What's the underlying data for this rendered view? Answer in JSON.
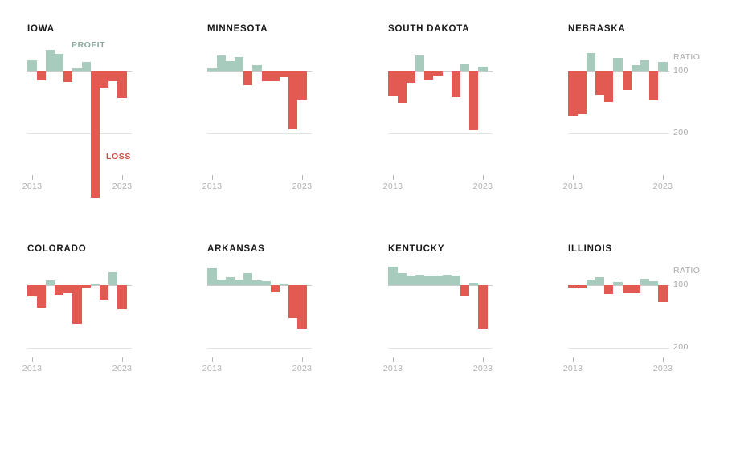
{
  "labels": {
    "profit": "PROFIT",
    "loss": "LOSS",
    "ratio": "RATIO",
    "ratio_top": "100",
    "ratio_bottom": "200",
    "year_start": "2013",
    "year_end": "2023"
  },
  "colors": {
    "profit_bar": "#a7cbbd",
    "loss_bar": "#e25a52",
    "profit_label_text": "#8cab9d",
    "loss_label_text": "#cf4f48",
    "axis_text": "#aaaaaa",
    "title_text": "#1a1a1a",
    "baseline": "#cccccc",
    "gridline": "#e4e4e4"
  },
  "chart_data": [
    {
      "type": "bar",
      "title": "IOWA",
      "ylabel": "RATIO",
      "x": [
        2013,
        2014,
        2015,
        2016,
        2017,
        2018,
        2019,
        2020,
        2021,
        2022,
        2023
      ],
      "values": [
        82,
        114,
        65,
        71,
        117,
        95,
        84,
        304,
        126,
        116,
        143
      ],
      "baseline": 100,
      "gridline": 200,
      "inverted_y": true,
      "legend": {
        "below_100": "PROFIT",
        "above_100": "LOSS"
      }
    },
    {
      "type": "bar",
      "title": "MINNESOTA",
      "ylabel": "RATIO",
      "x": [
        2013,
        2014,
        2015,
        2016,
        2017,
        2018,
        2019,
        2020,
        2021,
        2022,
        2023
      ],
      "values": [
        95,
        74,
        83,
        77,
        122,
        90,
        116,
        116,
        109,
        193,
        145
      ],
      "baseline": 100,
      "gridline": 200,
      "inverted_y": true,
      "legend": {
        "below_100": "PROFIT",
        "above_100": "LOSS"
      }
    },
    {
      "type": "bar",
      "title": "SOUTH DAKOTA",
      "ylabel": "RATIO",
      "x": [
        2013,
        2014,
        2015,
        2016,
        2017,
        2018,
        2019,
        2020,
        2021,
        2022,
        2023
      ],
      "values": [
        140,
        151,
        118,
        74,
        113,
        106,
        100,
        142,
        88,
        195,
        92
      ],
      "baseline": 100,
      "gridline": 200,
      "inverted_y": true,
      "legend": {
        "below_100": "PROFIT",
        "above_100": "LOSS"
      }
    },
    {
      "type": "bar",
      "title": "NEBRASKA",
      "ylabel": "RATIO",
      "x": [
        2013,
        2014,
        2015,
        2016,
        2017,
        2018,
        2019,
        2020,
        2021,
        2022,
        2023
      ],
      "values": [
        171,
        169,
        70,
        138,
        149,
        78,
        130,
        90,
        82,
        147,
        84
      ],
      "baseline": 100,
      "gridline": 200,
      "inverted_y": true,
      "legend": {
        "below_100": "PROFIT",
        "above_100": "LOSS"
      }
    },
    {
      "type": "bar",
      "title": "COLORADO",
      "ylabel": "RATIO",
      "x": [
        2013,
        2014,
        2015,
        2016,
        2017,
        2018,
        2019,
        2020,
        2021,
        2022,
        2023
      ],
      "values": [
        118,
        136,
        92,
        116,
        113,
        162,
        104,
        97,
        123,
        79,
        139
      ],
      "baseline": 100,
      "gridline": 200,
      "inverted_y": true,
      "legend": {
        "below_100": "PROFIT",
        "above_100": "LOSS"
      }
    },
    {
      "type": "bar",
      "title": "ARKANSAS",
      "ylabel": "RATIO",
      "x": [
        2013,
        2014,
        2015,
        2016,
        2017,
        2018,
        2019,
        2020,
        2021,
        2022,
        2023
      ],
      "values": [
        73,
        91,
        87,
        91,
        81,
        92,
        94,
        112,
        97,
        153,
        170
      ],
      "baseline": 100,
      "gridline": 200,
      "inverted_y": true,
      "legend": {
        "below_100": "PROFIT",
        "above_100": "LOSS"
      }
    },
    {
      "type": "bar",
      "title": "KENTUCKY",
      "ylabel": "RATIO",
      "x": [
        2013,
        2014,
        2015,
        2016,
        2017,
        2018,
        2019,
        2020,
        2021,
        2022,
        2023
      ],
      "values": [
        70,
        80,
        84,
        83,
        85,
        84,
        83,
        85,
        117,
        96,
        170
      ],
      "baseline": 100,
      "gridline": 200,
      "inverted_y": true,
      "legend": {
        "below_100": "PROFIT",
        "above_100": "LOSS"
      }
    },
    {
      "type": "bar",
      "title": "ILLINOIS",
      "ylabel": "RATIO",
      "x": [
        2013,
        2014,
        2015,
        2016,
        2017,
        2018,
        2019,
        2020,
        2021,
        2022,
        2023
      ],
      "values": [
        104,
        105,
        91,
        87,
        114,
        95,
        113,
        113,
        90,
        94,
        127
      ],
      "baseline": 100,
      "gridline": 200,
      "inverted_y": true,
      "legend": {
        "below_100": "PROFIT",
        "above_100": "LOSS"
      }
    }
  ]
}
